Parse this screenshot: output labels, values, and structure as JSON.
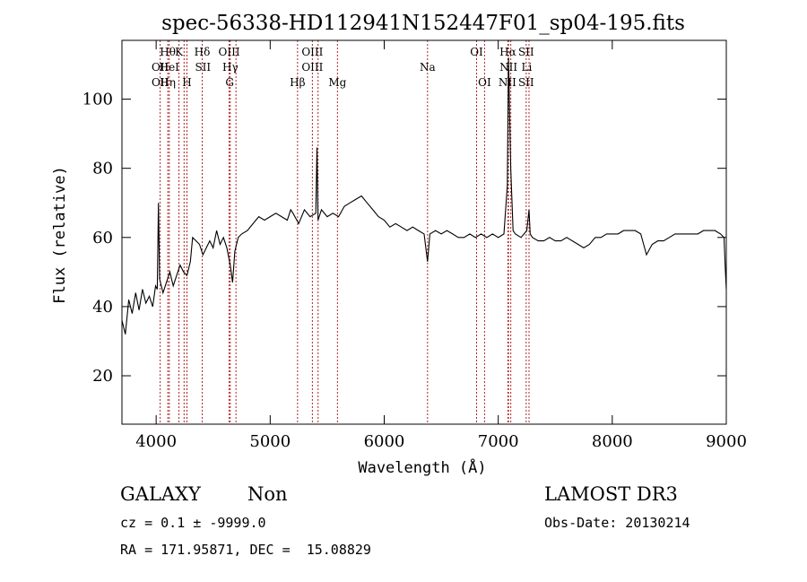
{
  "chart_data": {
    "type": "line",
    "title": "spec-56338-HD112941N152447F01_sp04-195.fits",
    "xlabel": "Wavelength (Å)",
    "ylabel": "Flux (relative)",
    "xlim": [
      3700,
      9000
    ],
    "ylim": [
      6,
      117
    ],
    "xticks": [
      4000,
      5000,
      6000,
      7000,
      8000,
      9000
    ],
    "yticks": [
      20,
      40,
      60,
      80,
      100
    ],
    "grid": false,
    "line_color": "#000000",
    "marker_color": "#b22222",
    "series": [
      {
        "points": [
          [
            3700,
            36
          ],
          [
            3730,
            32
          ],
          [
            3760,
            42
          ],
          [
            3790,
            38
          ],
          [
            3820,
            44
          ],
          [
            3850,
            39
          ],
          [
            3880,
            45
          ],
          [
            3910,
            41
          ],
          [
            3940,
            43
          ],
          [
            3970,
            40
          ],
          [
            3995,
            46
          ],
          [
            4010,
            45
          ],
          [
            4020,
            70
          ],
          [
            4030,
            48
          ],
          [
            4060,
            44
          ],
          [
            4090,
            47
          ],
          [
            4120,
            50
          ],
          [
            4150,
            46
          ],
          [
            4180,
            49
          ],
          [
            4210,
            52
          ],
          [
            4240,
            50
          ],
          [
            4270,
            49
          ],
          [
            4300,
            53
          ],
          [
            4320,
            60
          ],
          [
            4350,
            59
          ],
          [
            4380,
            58
          ],
          [
            4410,
            55
          ],
          [
            4440,
            57
          ],
          [
            4470,
            59
          ],
          [
            4500,
            57
          ],
          [
            4530,
            62
          ],
          [
            4560,
            58
          ],
          [
            4590,
            60
          ],
          [
            4620,
            57
          ],
          [
            4650,
            52
          ],
          [
            4670,
            47
          ],
          [
            4690,
            56
          ],
          [
            4720,
            60
          ],
          [
            4750,
            61
          ],
          [
            4800,
            62
          ],
          [
            4850,
            64
          ],
          [
            4900,
            66
          ],
          [
            4950,
            65
          ],
          [
            5000,
            66
          ],
          [
            5050,
            67
          ],
          [
            5100,
            66
          ],
          [
            5150,
            65
          ],
          [
            5180,
            68
          ],
          [
            5200,
            67
          ],
          [
            5250,
            64
          ],
          [
            5300,
            68
          ],
          [
            5350,
            66
          ],
          [
            5400,
            67
          ],
          [
            5410,
            86
          ],
          [
            5420,
            65
          ],
          [
            5450,
            68
          ],
          [
            5500,
            66
          ],
          [
            5550,
            67
          ],
          [
            5600,
            66
          ],
          [
            5650,
            69
          ],
          [
            5700,
            70
          ],
          [
            5750,
            71
          ],
          [
            5800,
            72
          ],
          [
            5850,
            70
          ],
          [
            5900,
            68
          ],
          [
            5950,
            66
          ],
          [
            6000,
            65
          ],
          [
            6050,
            63
          ],
          [
            6100,
            64
          ],
          [
            6150,
            63
          ],
          [
            6200,
            62
          ],
          [
            6250,
            63
          ],
          [
            6300,
            62
          ],
          [
            6350,
            61
          ],
          [
            6380,
            53
          ],
          [
            6400,
            61
          ],
          [
            6450,
            62
          ],
          [
            6500,
            61
          ],
          [
            6550,
            62
          ],
          [
            6600,
            61
          ],
          [
            6650,
            60
          ],
          [
            6700,
            60
          ],
          [
            6750,
            61
          ],
          [
            6800,
            60
          ],
          [
            6850,
            61
          ],
          [
            6900,
            60
          ],
          [
            6950,
            61
          ],
          [
            7000,
            60
          ],
          [
            7050,
            61
          ],
          [
            7080,
            75
          ],
          [
            7090,
            112
          ],
          [
            7095,
            105
          ],
          [
            7100,
            95
          ],
          [
            7110,
            80
          ],
          [
            7130,
            62
          ],
          [
            7150,
            61
          ],
          [
            7200,
            60
          ],
          [
            7250,
            62
          ],
          [
            7270,
            68
          ],
          [
            7280,
            61
          ],
          [
            7300,
            60
          ],
          [
            7350,
            59
          ],
          [
            7400,
            59
          ],
          [
            7450,
            60
          ],
          [
            7500,
            59
          ],
          [
            7550,
            59
          ],
          [
            7600,
            60
          ],
          [
            7650,
            59
          ],
          [
            7700,
            58
          ],
          [
            7750,
            57
          ],
          [
            7800,
            58
          ],
          [
            7850,
            60
          ],
          [
            7900,
            60
          ],
          [
            7950,
            61
          ],
          [
            8000,
            61
          ],
          [
            8050,
            61
          ],
          [
            8100,
            62
          ],
          [
            8150,
            62
          ],
          [
            8200,
            62
          ],
          [
            8250,
            61
          ],
          [
            8300,
            55
          ],
          [
            8350,
            58
          ],
          [
            8400,
            59
          ],
          [
            8450,
            59
          ],
          [
            8500,
            60
          ],
          [
            8550,
            61
          ],
          [
            8600,
            61
          ],
          [
            8650,
            61
          ],
          [
            8700,
            61
          ],
          [
            8750,
            61
          ],
          [
            8800,
            62
          ],
          [
            8850,
            62
          ],
          [
            8900,
            62
          ],
          [
            8950,
            61
          ],
          [
            8980,
            60
          ],
          [
            8990,
            52
          ],
          [
            9000,
            45
          ]
        ]
      }
    ],
    "lines": [
      {
        "wl": 4035,
        "label": "OII",
        "row": 2
      },
      {
        "wl": 4035,
        "label": "OII",
        "row": 3
      },
      {
        "wl": 4102,
        "label": "Hθ",
        "row": 1
      },
      {
        "wl": 4102,
        "label": "Hη",
        "row": 3
      },
      {
        "wl": 4115,
        "label": "HeI",
        "row": 2
      },
      {
        "wl": 4200,
        "label": "K",
        "row": 1
      },
      {
        "wl": 4270,
        "label": "H",
        "row": 3
      },
      {
        "wl": 4245,
        "label": "",
        "row": 0
      },
      {
        "wl": 4404,
        "label": "Hδ",
        "row": 1
      },
      {
        "wl": 4410,
        "label": "SII",
        "row": 2
      },
      {
        "wl": 4640,
        "label": "OIII",
        "row": 1
      },
      {
        "wl": 4650,
        "label": "Hγ",
        "row": 2
      },
      {
        "wl": 4645,
        "label": "G",
        "row": 3
      },
      {
        "wl": 4700,
        "label": "",
        "row": 0
      },
      {
        "wl": 5240,
        "label": "Hβ",
        "row": 3
      },
      {
        "wl": 5370,
        "label": "OIII",
        "row": 1
      },
      {
        "wl": 5370,
        "label": "OIII",
        "row": 2
      },
      {
        "wl": 5420,
        "label": "",
        "row": 0
      },
      {
        "wl": 5590,
        "label": "Mg",
        "row": 3
      },
      {
        "wl": 6380,
        "label": "Na",
        "row": 2
      },
      {
        "wl": 6810,
        "label": "OI",
        "row": 1
      },
      {
        "wl": 6880,
        "label": "OI",
        "row": 3
      },
      {
        "wl": 7085,
        "label": "Hα",
        "row": 1
      },
      {
        "wl": 7090,
        "label": "NII",
        "row": 2
      },
      {
        "wl": 7080,
        "label": "NII",
        "row": 3
      },
      {
        "wl": 7110,
        "label": "",
        "row": 0
      },
      {
        "wl": 7245,
        "label": "SII",
        "row": 1
      },
      {
        "wl": 7250,
        "label": "Li",
        "row": 2
      },
      {
        "wl": 7245,
        "label": "SII",
        "row": 3
      },
      {
        "wl": 7270,
        "label": "",
        "row": 0
      }
    ]
  },
  "info": {
    "class": "GALAXY",
    "subclass": "Non",
    "survey": "LAMOST DR3",
    "cz": "cz = 0.1 ± -9999.0",
    "obs_date": "Obs-Date: 20130214",
    "radec": "RA = 171.95871, DEC =  15.08829"
  }
}
